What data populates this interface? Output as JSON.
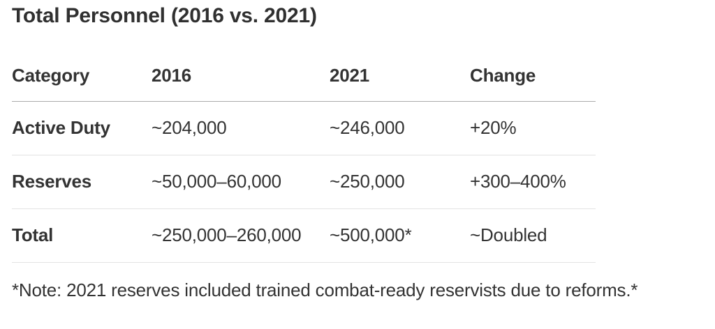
{
  "title": "Total Personnel (2016 vs. 2021)",
  "table": {
    "columns": [
      "Category",
      "2016",
      "2021",
      "Change"
    ],
    "rows": [
      {
        "category": "Active Duty",
        "y2016": "~204,000",
        "y2021": "~246,000",
        "change": "+20%"
      },
      {
        "category": "Reserves",
        "y2016": "~50,000–60,000",
        "y2021": "~250,000",
        "change": "+300–400%"
      },
      {
        "category": "Total",
        "y2016": "~250,000–260,000",
        "y2021": "~500,000*",
        "change": "~Doubled"
      }
    ]
  },
  "note": "*Note: 2021 reserves included trained combat-ready reservists due to reforms.*",
  "colors": {
    "text": "#333333",
    "header_divider": "#ababab",
    "row_divider": "#e3e3e3",
    "background": "#ffffff"
  }
}
